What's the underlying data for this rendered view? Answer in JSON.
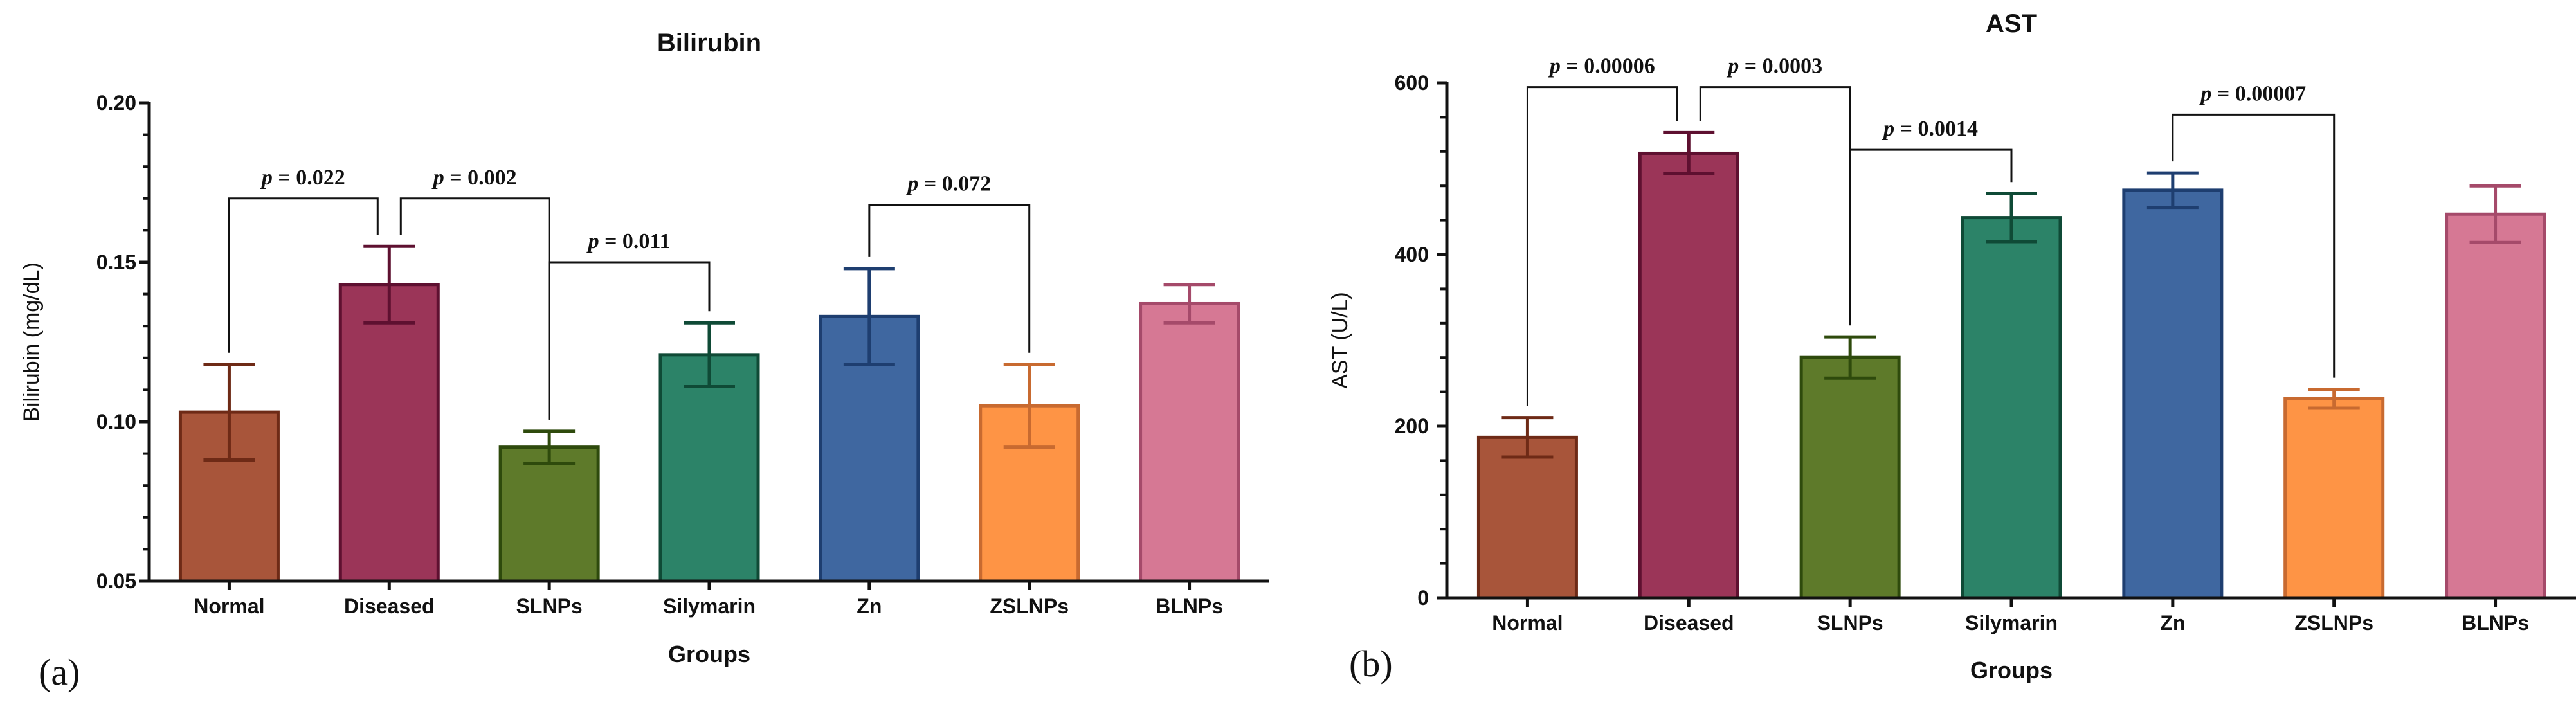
{
  "chart_data": [
    {
      "type": "bar",
      "panel_label": "(a)",
      "title": "Bilirubin",
      "xlabel": "Groups",
      "ylabel": "Bilirubin (mg/dL)",
      "ylim": [
        0.05,
        0.2
      ],
      "yticks": [
        0.05,
        0.1,
        0.15,
        0.2
      ],
      "ytick_labels": [
        "0.05",
        "0.10",
        "0.15",
        "0.20"
      ],
      "categories": [
        "Normal",
        "Diseased",
        "SLNPs",
        "Silymarin",
        "Zn",
        "ZSLNPs",
        "BLNPs"
      ],
      "values": [
        0.103,
        0.143,
        0.092,
        0.121,
        0.133,
        0.105,
        0.137
      ],
      "errors": [
        0.015,
        0.012,
        0.005,
        0.01,
        0.015,
        0.013,
        0.006
      ],
      "fill_colors": [
        "#A8553A",
        "#9B3558",
        "#5E7A2A",
        "#2C8368",
        "#3F67A0",
        "#FE9445",
        "#D67894"
      ],
      "edge_colors": [
        "#6E2A16",
        "#5E1030",
        "#2E4A0C",
        "#0F4A36",
        "#1E3E70",
        "#C86A30",
        "#A54A6A"
      ],
      "comparisons": [
        {
          "from": 0,
          "to": 1,
          "label": "p = 0.022",
          "y": 0.17
        },
        {
          "from": 1,
          "to": 2,
          "label": "p = 0.002",
          "y": 0.17
        },
        {
          "from": 2,
          "to": 3,
          "label": "p = 0.011",
          "y": 0.15
        },
        {
          "from": 4,
          "to": 5,
          "label": "p = 0.072",
          "y": 0.168
        }
      ]
    },
    {
      "type": "bar",
      "panel_label": "(b)",
      "title": "AST",
      "xlabel": "Groups",
      "ylabel": "AST (U/L)",
      "ylim": [
        0,
        600
      ],
      "yticks": [
        0,
        200,
        400,
        600
      ],
      "ytick_labels": [
        "0",
        "200",
        "400",
        "600"
      ],
      "categories": [
        "Normal",
        "Diseased",
        "SLNPs",
        "Silymarin",
        "Zn",
        "ZSLNPs",
        "BLNPs"
      ],
      "values": [
        187,
        518,
        280,
        443,
        475,
        232,
        447
      ],
      "errors": [
        23,
        24,
        24,
        28,
        20,
        11,
        33
      ],
      "fill_colors": [
        "#A8553A",
        "#9B3558",
        "#5E7A2A",
        "#2C8368",
        "#3F67A0",
        "#FE9445",
        "#D67894"
      ],
      "edge_colors": [
        "#6E2A16",
        "#5E1030",
        "#2E4A0C",
        "#0F4A36",
        "#1E3E70",
        "#C86A30",
        "#A54A6A"
      ],
      "comparisons": [
        {
          "from": 0,
          "to": 1,
          "label": "p = 0.00006",
          "y": 595
        },
        {
          "from": 1,
          "to": 2,
          "label": "p = 0.0003",
          "y": 595
        },
        {
          "from": 2,
          "to": 3,
          "label": "p = 0.0014",
          "y": 522
        },
        {
          "from": 4,
          "to": 5,
          "label": "p = 0.00007",
          "y": 563
        }
      ]
    }
  ]
}
